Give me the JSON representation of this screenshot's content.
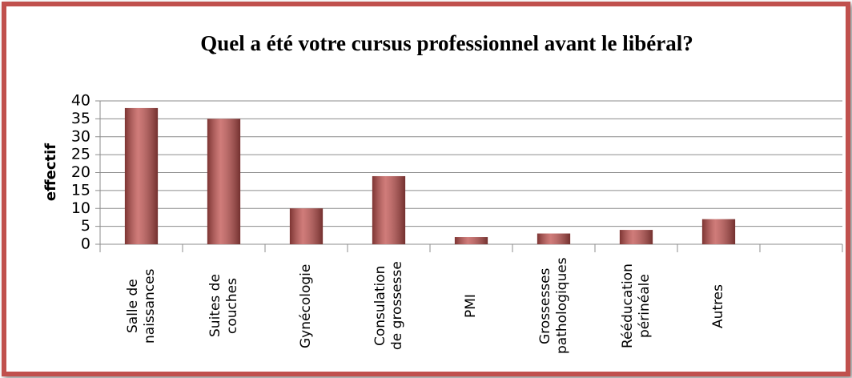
{
  "chart_data": {
    "type": "bar",
    "title": "Quel a été votre cursus professionnel avant le libéral?",
    "y_label": "effectif",
    "categories": [
      "Salle de naissances",
      "Suites de couches",
      "Gynécologie",
      "Consulation de grossesse",
      "PMI",
      "Grossesses pathologiques",
      "Rééducation périnéale",
      "Autres",
      null
    ],
    "values": [
      38,
      35,
      10,
      19,
      2,
      3,
      4,
      7,
      null
    ],
    "color": "#c0504d",
    "ylim": [
      0,
      40
    ],
    "yticks": [
      0,
      5,
      10,
      15,
      20,
      25,
      30,
      35,
      40
    ],
    "grid": true
  }
}
